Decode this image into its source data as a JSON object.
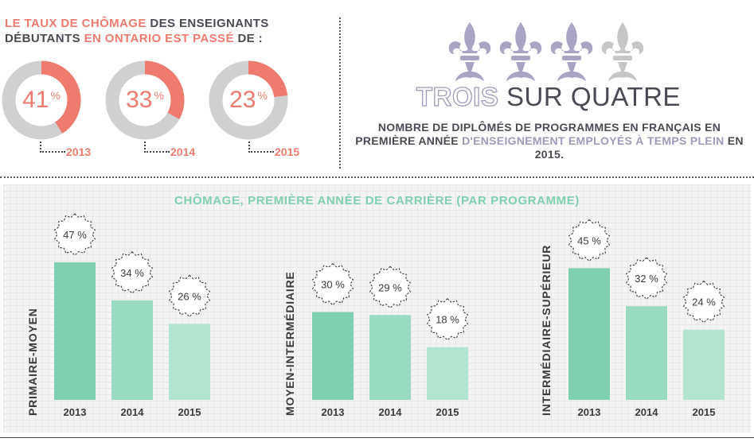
{
  "top_left": {
    "title_part1": "LE TAUX DE CHÔMAGE",
    "title_part2": " DES ENSEIGNANTS DÉBUTANTS ",
    "title_part3": "EN ONTARIO EST PASSÉ",
    "title_part4": " DE :",
    "donuts": [
      {
        "value": 41,
        "label": "41",
        "year": "2013"
      },
      {
        "value": 33,
        "label": "33",
        "year": "2014"
      },
      {
        "value": 23,
        "label": "23",
        "year": "2015"
      }
    ],
    "percent_symbol": "%"
  },
  "top_right": {
    "fleurs": [
      {
        "icon": "fleur-de-lis-icon",
        "state": "filled"
      },
      {
        "icon": "fleur-de-lis-icon",
        "state": "filled"
      },
      {
        "icon": "fleur-de-lis-icon",
        "state": "filled"
      },
      {
        "icon": "fleur-de-lis-icon",
        "state": "empty"
      }
    ],
    "headline_outline": "TROIS",
    "headline_rest": " SUR QUATRE",
    "sub_part1": "NOMBRE DE DIPLÔMÉS DE PROGRAMMES EN FRANÇAIS EN PREMIÈRE ANNÉE ",
    "sub_part2": "D'ENSEIGNEMENT EMPLOYÉS À TEMPS PLEIN",
    "sub_part3": " EN 2015."
  },
  "colors": {
    "coral": "#ee7b6e",
    "donut_track": "#d0d0d2",
    "lavender": "#9f9aba",
    "fleur_filled": "#a9a3c4",
    "fleur_empty": "#c6c6c8",
    "bar_2013": "#7fd0b0",
    "bar_2014": "#98dbc0",
    "bar_2015": "#b2e5d0",
    "text_dark": "#4a4a55"
  },
  "chart_data": [
    {
      "type": "bar",
      "title": "CHÔMAGE, PREMIÈRE ANNÉE DE CARRIÈRE (PAR PROGRAMME)",
      "category_axis_label": "PRIMAIRE-MOYEN",
      "categories": [
        "2013",
        "2014",
        "2015"
      ],
      "values": [
        47,
        34,
        26
      ],
      "value_labels": [
        "47 %",
        "34 %",
        "26 %"
      ],
      "ylim": [
        0,
        50
      ]
    },
    {
      "type": "bar",
      "title": "CHÔMAGE, PREMIÈRE ANNÉE DE CARRIÈRE (PAR PROGRAMME)",
      "category_axis_label": "MOYEN-INTERMÉDIAIRE",
      "categories": [
        "2013",
        "2014",
        "2015"
      ],
      "values": [
        30,
        29,
        18
      ],
      "value_labels": [
        "30 %",
        "29 %",
        "18 %"
      ],
      "ylim": [
        0,
        50
      ]
    },
    {
      "type": "bar",
      "title": "CHÔMAGE, PREMIÈRE ANNÉE DE CARRIÈRE (PAR PROGRAMME)",
      "category_axis_label": "INTERMÉDIAIRE-SUPÉRIEUR",
      "categories": [
        "2013",
        "2014",
        "2015"
      ],
      "values": [
        45,
        32,
        24
      ],
      "value_labels": [
        "45 %",
        "32 %",
        "24 %"
      ],
      "ylim": [
        0,
        50
      ]
    }
  ],
  "bar_chart_title": "CHÔMAGE, PREMIÈRE ANNÉE DE CARRIÈRE (PAR PROGRAMME)",
  "panel_labels": [
    "PRIMAIRE-MOYEN",
    "MOYEN-INTERMÉDIAIRE",
    "INTERMÉDIAIRE-SUPÉRIEUR"
  ]
}
